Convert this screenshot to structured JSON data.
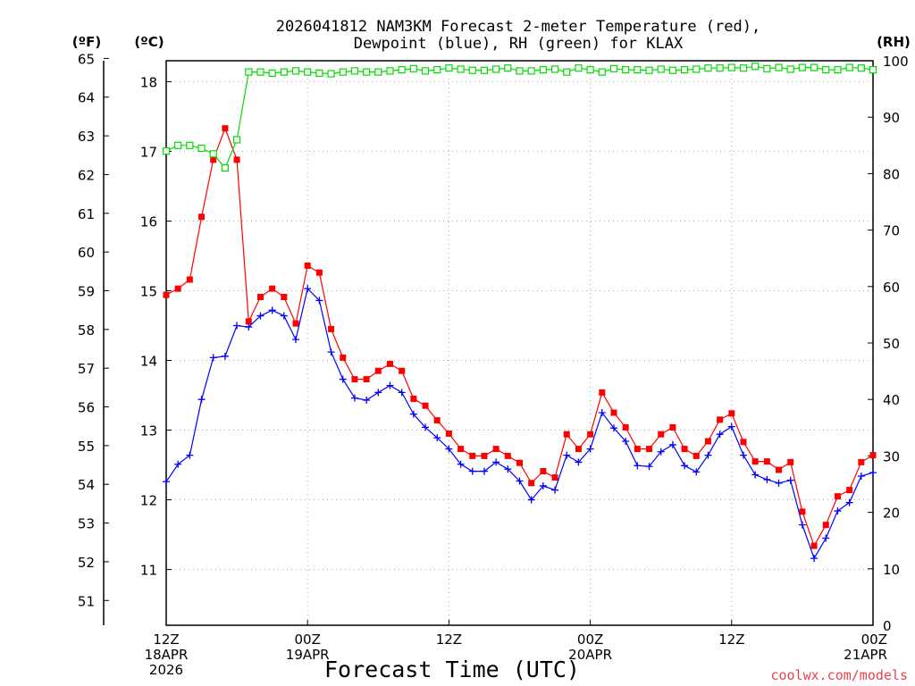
{
  "chart_data": {
    "type": "line",
    "title": [
      "2026041812 NAM3KM Forecast 2-meter Temperature (red),",
      "Dewpoint (blue), RH (green) for KLAX"
    ],
    "xlabel": "Forecast Time (UTC)",
    "credit": "coolwx.com/models",
    "units": {
      "fahrenheit": "(ºF)",
      "celsius": "(ºC)",
      "rh": "(RH)"
    },
    "hours_range": [
      0,
      60
    ],
    "celsius_range": [
      10.2,
      18.3
    ],
    "rh_range": [
      0,
      100
    ],
    "x_ticks": [
      {
        "hour": 0,
        "lines": [
          "12Z",
          "18APR",
          "2026"
        ]
      },
      {
        "hour": 12,
        "lines": [
          "00Z",
          "19APR"
        ]
      },
      {
        "hour": 24,
        "lines": [
          "12Z"
        ]
      },
      {
        "hour": 36,
        "lines": [
          "00Z",
          "20APR"
        ]
      },
      {
        "hour": 48,
        "lines": [
          "12Z"
        ]
      },
      {
        "hour": 60,
        "lines": [
          "00Z",
          "21APR"
        ]
      }
    ],
    "celsius_ticks": [
      "11",
      "12",
      "13",
      "14",
      "15",
      "16",
      "17",
      "18"
    ],
    "fahrenheit_ticks": [
      "51",
      "52",
      "53",
      "54",
      "55",
      "56",
      "57",
      "58",
      "59",
      "60",
      "61",
      "62",
      "63",
      "64",
      "65"
    ],
    "rh_ticks": [
      "0",
      "10",
      "20",
      "30",
      "40",
      "50",
      "60",
      "70",
      "80",
      "90",
      "100"
    ],
    "series": [
      {
        "name": "Temperature",
        "units": "°C",
        "color": "#ff0000",
        "marker": "filled-square",
        "values": [
          14.94,
          15.03,
          15.16,
          16.06,
          16.88,
          17.33,
          16.88,
          14.56,
          14.91,
          15.03,
          14.91,
          14.53,
          15.36,
          15.26,
          14.45,
          14.04,
          13.73,
          13.73,
          13.85,
          13.95,
          13.85,
          13.45,
          13.35,
          13.14,
          12.95,
          12.73,
          12.63,
          12.63,
          12.73,
          12.63,
          12.53,
          12.24,
          12.41,
          12.32,
          12.94,
          12.73,
          12.94,
          13.54,
          13.25,
          13.04,
          12.73,
          12.73,
          12.94,
          13.04,
          12.73,
          12.63,
          12.84,
          13.15,
          13.24,
          12.83,
          12.55,
          12.55,
          12.43,
          12.54,
          11.83,
          11.34,
          11.64,
          12.05,
          12.14,
          12.54,
          12.64
        ]
      },
      {
        "name": "Dewpoint",
        "units": "°C",
        "color": "#0000ff",
        "marker": "plus",
        "values": [
          12.26,
          12.51,
          12.64,
          13.44,
          14.04,
          14.06,
          14.5,
          14.48,
          14.64,
          14.72,
          14.64,
          14.3,
          15.03,
          14.86,
          14.12,
          13.73,
          13.46,
          13.43,
          13.54,
          13.64,
          13.54,
          13.23,
          13.04,
          12.89,
          12.73,
          12.51,
          12.41,
          12.41,
          12.54,
          12.44,
          12.27,
          12.0,
          12.2,
          12.14,
          12.64,
          12.54,
          12.73,
          13.25,
          13.03,
          12.84,
          12.49,
          12.48,
          12.69,
          12.79,
          12.49,
          12.4,
          12.64,
          12.94,
          13.05,
          12.64,
          12.36,
          12.29,
          12.24,
          12.28,
          11.64,
          11.16,
          11.45,
          11.84,
          11.96,
          12.34,
          12.39
        ]
      },
      {
        "name": "RH",
        "units": "%",
        "color": "#00dd00",
        "marker": "hollow-square",
        "values": [
          84.0,
          85.0,
          85.0,
          84.5,
          83.5,
          81.0,
          86.0,
          98.0,
          98.0,
          97.8,
          98.0,
          98.2,
          98.0,
          97.8,
          97.7,
          98.0,
          98.2,
          98.0,
          98.0,
          98.2,
          98.4,
          98.6,
          98.2,
          98.4,
          98.7,
          98.5,
          98.3,
          98.3,
          98.5,
          98.7,
          98.2,
          98.2,
          98.4,
          98.5,
          98.0,
          98.7,
          98.4,
          98.0,
          98.6,
          98.4,
          98.4,
          98.3,
          98.5,
          98.3,
          98.4,
          98.5,
          98.7,
          98.7,
          98.8,
          98.7,
          99.0,
          98.6,
          98.8,
          98.5,
          98.8,
          98.8,
          98.4,
          98.4,
          98.8,
          98.7,
          98.4
        ]
      }
    ]
  }
}
